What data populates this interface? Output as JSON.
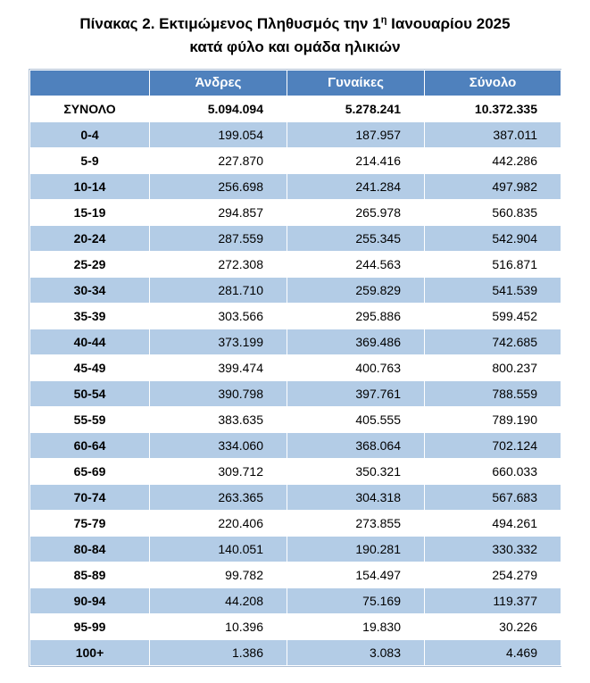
{
  "title": {
    "line1_before_sup": "Πίνακας 2. Εκτιμώμενος Πληθυσμός την 1",
    "line1_sup": "η",
    "line1_after_sup": " Ιανουαρίου 2025",
    "line2": "κατά φύλο και ομάδα ηλικιών"
  },
  "colors": {
    "header_bg": "#4F81BD",
    "band_bg": "#B3CCE6",
    "header_text": "#FFFFFF"
  },
  "table": {
    "columns": [
      "",
      "Άνδρες",
      "Γυναίκες",
      "Σύνολο"
    ],
    "total_row": {
      "label": "ΣΥΝΟΛΟ",
      "values": [
        "5.094.094",
        "5.278.241",
        "10.372.335"
      ]
    },
    "rows": [
      {
        "label": "0-4",
        "values": [
          "199.054",
          "187.957",
          "387.011"
        ]
      },
      {
        "label": "5-9",
        "values": [
          "227.870",
          "214.416",
          "442.286"
        ]
      },
      {
        "label": "10-14",
        "values": [
          "256.698",
          "241.284",
          "497.982"
        ]
      },
      {
        "label": "15-19",
        "values": [
          "294.857",
          "265.978",
          "560.835"
        ]
      },
      {
        "label": "20-24",
        "values": [
          "287.559",
          "255.345",
          "542.904"
        ]
      },
      {
        "label": "25-29",
        "values": [
          "272.308",
          "244.563",
          "516.871"
        ]
      },
      {
        "label": "30-34",
        "values": [
          "281.710",
          "259.829",
          "541.539"
        ]
      },
      {
        "label": "35-39",
        "values": [
          "303.566",
          "295.886",
          "599.452"
        ]
      },
      {
        "label": "40-44",
        "values": [
          "373.199",
          "369.486",
          "742.685"
        ]
      },
      {
        "label": "45-49",
        "values": [
          "399.474",
          "400.763",
          "800.237"
        ]
      },
      {
        "label": "50-54",
        "values": [
          "390.798",
          "397.761",
          "788.559"
        ]
      },
      {
        "label": "55-59",
        "values": [
          "383.635",
          "405.555",
          "789.190"
        ]
      },
      {
        "label": "60-64",
        "values": [
          "334.060",
          "368.064",
          "702.124"
        ]
      },
      {
        "label": "65-69",
        "values": [
          "309.712",
          "350.321",
          "660.033"
        ]
      },
      {
        "label": "70-74",
        "values": [
          "263.365",
          "304.318",
          "567.683"
        ]
      },
      {
        "label": "75-79",
        "values": [
          "220.406",
          "273.855",
          "494.261"
        ]
      },
      {
        "label": "80-84",
        "values": [
          "140.051",
          "190.281",
          "330.332"
        ]
      },
      {
        "label": "85-89",
        "values": [
          "99.782",
          "154.497",
          "254.279"
        ]
      },
      {
        "label": "90-94",
        "values": [
          "44.208",
          "75.169",
          "119.377"
        ]
      },
      {
        "label": "95-99",
        "values": [
          "10.396",
          "19.830",
          "30.226"
        ]
      },
      {
        "label": "100+",
        "values": [
          "1.386",
          "3.083",
          "4.469"
        ]
      }
    ]
  }
}
